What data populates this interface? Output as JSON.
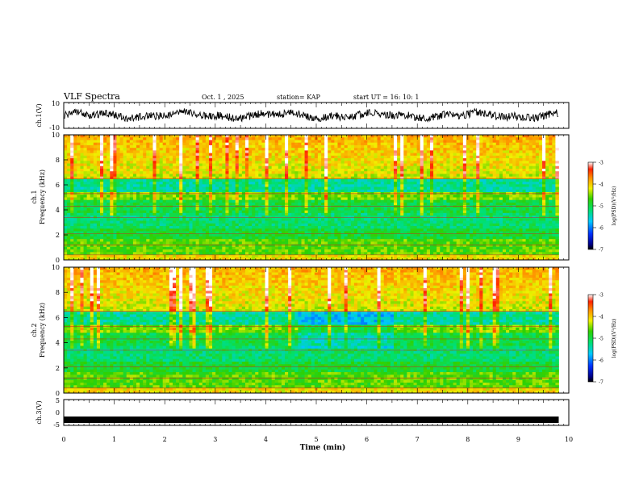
{
  "header": {
    "title": "VLF Spectra",
    "date": "Oct. 1 , 2025",
    "station": "station= KAP",
    "start": "start  UT =   16: 10: 1"
  },
  "chart_data": [
    {
      "type": "line",
      "name": "ch1-waveform",
      "ylabel": "ch.1(V)",
      "ylim": [
        -10,
        10
      ],
      "yticks": [
        "10",
        "-10"
      ],
      "xlim": [
        0,
        10
      ],
      "approx_level": 0,
      "approx_amplitude": 4
    },
    {
      "type": "heatmap",
      "name": "ch1-spectrogram",
      "ylabel_line1": "ch.1",
      "ylabel_line2": "Frequency (kHz)",
      "ylim": [
        0,
        10
      ],
      "yticks": [
        "0",
        "2",
        "4",
        "6",
        "8",
        "10"
      ],
      "xlim": [
        0,
        9.8
      ],
      "colorbar": {
        "label": "log(PSD)(V²/Hz)",
        "range": [
          -7,
          -3
        ],
        "ticks": [
          "-3",
          "-4",
          "-5",
          "-6",
          "-7"
        ]
      }
    },
    {
      "type": "heatmap",
      "name": "ch2-spectrogram",
      "ylabel_line1": "ch.2",
      "ylabel_line2": "Frequency (kHz)",
      "ylim": [
        0,
        10
      ],
      "yticks": [
        "0",
        "2",
        "4",
        "6",
        "8",
        "10"
      ],
      "xlim": [
        0,
        9.8
      ],
      "colorbar": {
        "label": "log(PSD)(V²/Hz)",
        "range": [
          -7,
          -3
        ],
        "ticks": [
          "-3",
          "-4",
          "-5",
          "-6",
          "-7"
        ]
      }
    },
    {
      "type": "line",
      "name": "ch3-waveform",
      "ylabel": "ch.3(V)",
      "ylim": [
        -5,
        5
      ],
      "yticks": [
        "5",
        "0",
        "-5"
      ],
      "xlim": [
        0,
        9.8
      ],
      "approx_level": -2.8
    }
  ],
  "xaxis": {
    "label": "Time (min)",
    "ticks": [
      "0",
      "1",
      "2",
      "3",
      "4",
      "5",
      "6",
      "7",
      "8",
      "9",
      "10"
    ],
    "range": [
      0,
      10
    ]
  }
}
